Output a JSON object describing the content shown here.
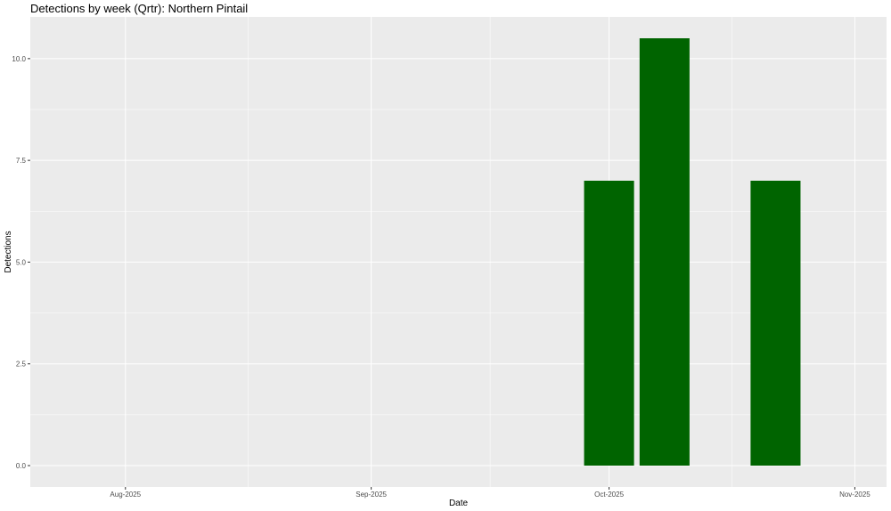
{
  "chart_data": {
    "type": "bar",
    "title": "Detections by week (Qrtr): Northern Pintail",
    "xlabel": "Date",
    "ylabel": "Detections",
    "x": [
      "2025-10-01",
      "2025-10-08",
      "2025-10-22"
    ],
    "values": [
      7.0,
      10.5,
      7.0
    ],
    "bar_width_days": 6.3,
    "xlim": [
      "2025-07-20",
      "2025-11-05"
    ],
    "ylim": [
      -0.525,
      11.025
    ],
    "x_ticks": [
      {
        "date": "2025-08-01",
        "label": "Aug-2025"
      },
      {
        "date": "2025-09-01",
        "label": "Sep-2025"
      },
      {
        "date": "2025-10-01",
        "label": "Oct-2025"
      },
      {
        "date": "2025-11-01",
        "label": "Nov-2025"
      }
    ],
    "y_ticks": [
      {
        "value": 0,
        "label": "0.0"
      },
      {
        "value": 2.5,
        "label": "2.5"
      },
      {
        "value": 5,
        "label": "5.0"
      },
      {
        "value": 7.5,
        "label": "7.5"
      },
      {
        "value": 10,
        "label": "10.0"
      }
    ],
    "grid": true,
    "colors": {
      "bar": "#006400",
      "panel": "#EBEBEB",
      "grid": "#FFFFFF"
    }
  }
}
